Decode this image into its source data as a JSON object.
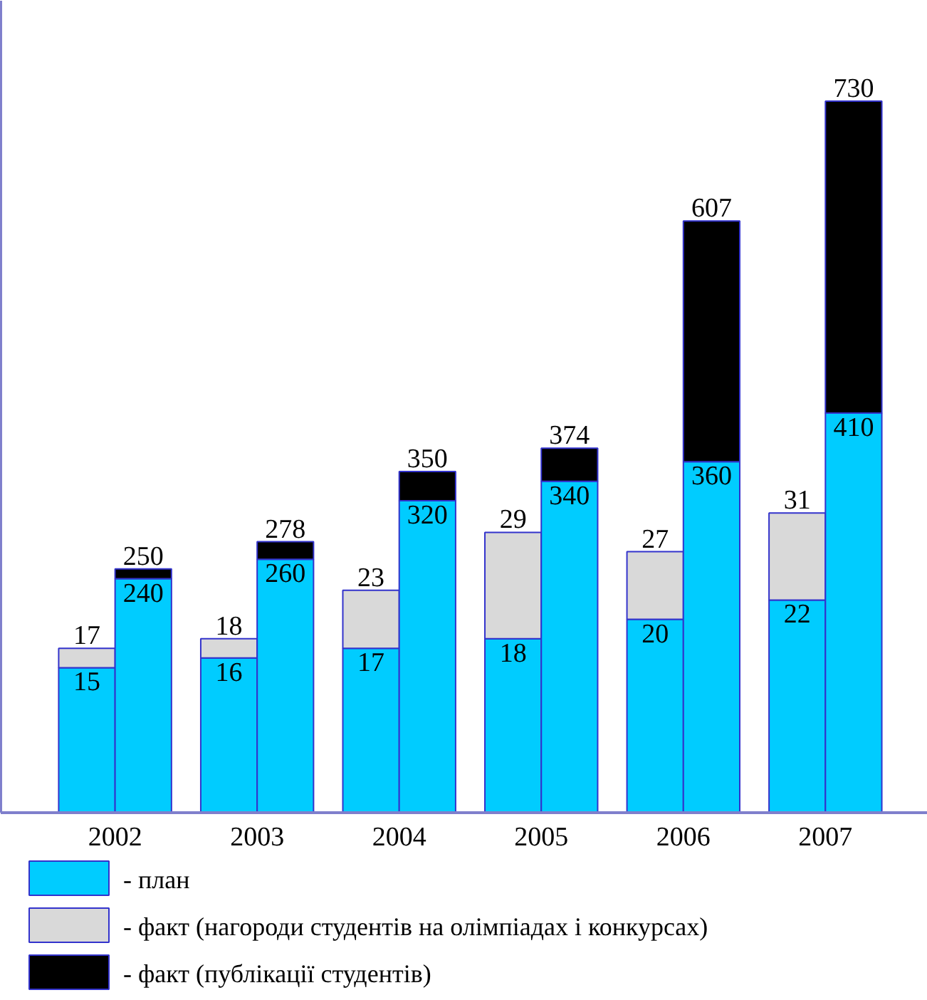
{
  "chart_data": {
    "type": "bar",
    "stacked": true,
    "categories": [
      "2002",
      "2003",
      "2004",
      "2005",
      "2006",
      "2007"
    ],
    "series": [
      {
        "name": "- план",
        "color": "#00ccff",
        "values": [
          15,
          16,
          17,
          18,
          20,
          22
        ],
        "value_labels": [
          "15",
          "16",
          "17",
          "18",
          "20",
          "22"
        ]
      },
      {
        "name": "- факт (нагороди студентів на олімпіадах і конкурсах)",
        "color": "#d9d9d9",
        "values": [
          2,
          2,
          6,
          11,
          7,
          9
        ]
      },
      {
        "axis": "y2",
        "color": "#00ccff",
        "values": [
          240,
          260,
          320,
          340,
          360,
          410
        ],
        "value_labels": [
          "240",
          "260",
          "320",
          "340",
          "360",
          "410"
        ]
      },
      {
        "name": "- факт (публікації студентів)",
        "axis": "y2",
        "color": "#000000",
        "values": [
          10,
          18,
          30,
          34,
          247,
          320
        ]
      }
    ],
    "totals": [
      "17",
      "18",
      "23",
      "29",
      "27",
      "31",
      "250",
      "278",
      "350",
      "374",
      "607",
      "730"
    ],
    "ylim": [
      0,
      84
    ],
    "y2lim": [
      0,
      833
    ],
    "tick_labels": "x",
    "grid": false,
    "legend": "bottom"
  }
}
